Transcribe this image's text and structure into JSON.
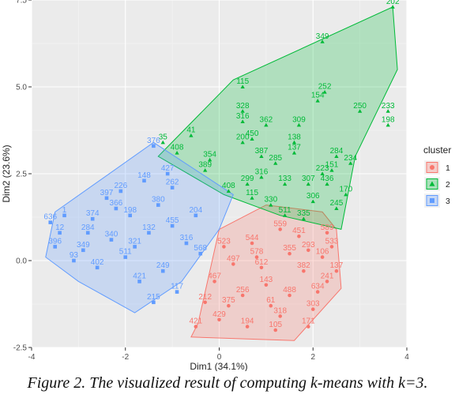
{
  "caption": "Figure 2. The visualized result of computing k-means with k=3.",
  "chart_data": {
    "type": "scatter",
    "title": "",
    "xlabel": "Dim1 (34.1%)",
    "ylabel": "Dim2 (23.6%)",
    "xlim": [
      -4,
      4
    ],
    "ylim": [
      -2.5,
      7.5
    ],
    "xticks": [
      -4,
      -2,
      0,
      2,
      4
    ],
    "yticks": [
      -2.5,
      0.0,
      2.5,
      5.0,
      7.5
    ],
    "xtick_labels": [
      "-4",
      "-2",
      "0",
      "2",
      "4"
    ],
    "ytick_labels": [
      "-2.5",
      "0.0",
      "2.5",
      "5.0",
      "7.5"
    ],
    "grid": true,
    "panel_background": "#EBEBEB",
    "legend": {
      "title": "cluster",
      "placement": "right",
      "entries": [
        "1",
        "2",
        "3"
      ]
    },
    "series": [
      {
        "name": "1",
        "color": "#F8766D",
        "marker": "circle",
        "hull": [
          [
            -0.45,
            -1.8
          ],
          [
            0.0,
            0.9
          ],
          [
            1.0,
            1.6
          ],
          [
            2.2,
            1.4
          ],
          [
            2.5,
            0.9
          ],
          [
            2.6,
            -0.8
          ],
          [
            1.6,
            -2.3
          ],
          [
            -0.6,
            -2.2
          ]
        ],
        "points": [
          [
            0.7,
            0.5,
            "544"
          ],
          [
            1.3,
            0.9,
            "559"
          ],
          [
            1.9,
            0.3,
            "293"
          ],
          [
            2.2,
            0.1,
            "106"
          ],
          [
            2.5,
            -0.3,
            "137"
          ],
          [
            2.3,
            -0.6,
            "241"
          ],
          [
            0.6,
            -1.9,
            "194"
          ],
          [
            1.2,
            -2.0,
            "105"
          ],
          [
            -0.5,
            -1.9,
            "421"
          ],
          [
            0.2,
            -1.3,
            "375"
          ],
          [
            1.5,
            -1.0,
            "488"
          ],
          [
            0.9,
            -0.2,
            "612"
          ],
          [
            2.0,
            -1.4,
            "303"
          ],
          [
            1.7,
            0.7,
            "451"
          ],
          [
            0.1,
            0.4,
            "523"
          ],
          [
            1.3,
            -1.6,
            "318"
          ],
          [
            2.3,
            0.8,
            "589"
          ],
          [
            -0.1,
            -0.6,
            "467"
          ],
          [
            0.5,
            -1.0,
            "256"
          ],
          [
            1.8,
            -0.3,
            "382"
          ],
          [
            1.0,
            -0.7,
            "143"
          ],
          [
            0.3,
            -0.1,
            "497"
          ],
          [
            2.1,
            -0.9,
            "634"
          ],
          [
            -0.3,
            -1.2,
            "212"
          ],
          [
            1.5,
            0.2,
            "355"
          ],
          [
            0.8,
            0.1,
            "578"
          ],
          [
            0.0,
            -1.7,
            "429"
          ],
          [
            1.1,
            -1.3,
            "61"
          ],
          [
            2.4,
            0.4,
            "533"
          ],
          [
            1.9,
            -1.9,
            "171"
          ]
        ]
      },
      {
        "name": "2",
        "color": "#00BA38",
        "marker": "triangle",
        "hull": [
          [
            -1.3,
            3.0
          ],
          [
            0.3,
            5.2
          ],
          [
            3.7,
            7.3
          ],
          [
            3.8,
            5.5
          ],
          [
            2.9,
            3.0
          ],
          [
            2.6,
            0.9
          ],
          [
            1.3,
            1.3
          ],
          [
            0.1,
            1.9
          ]
        ],
        "points": [
          [
            3.7,
            7.3,
            "202"
          ],
          [
            2.2,
            6.3,
            "349"
          ],
          [
            0.5,
            5.0,
            "115"
          ],
          [
            2.25,
            4.85,
            "252"
          ],
          [
            2.1,
            4.6,
            "154"
          ],
          [
            3.0,
            4.3,
            "250"
          ],
          [
            3.6,
            4.3,
            "233"
          ],
          [
            3.6,
            3.9,
            "198"
          ],
          [
            1.0,
            3.9,
            "362"
          ],
          [
            1.7,
            3.9,
            "309"
          ],
          [
            0.5,
            4.0,
            "316"
          ],
          [
            0.5,
            4.3,
            "328"
          ],
          [
            -1.2,
            3.4,
            "35"
          ],
          [
            -0.6,
            3.6,
            "41"
          ],
          [
            -0.9,
            3.1,
            "408"
          ],
          [
            0.5,
            3.4,
            "200"
          ],
          [
            0.7,
            3.5,
            "450"
          ],
          [
            1.6,
            3.4,
            "138"
          ],
          [
            1.6,
            3.1,
            "137"
          ],
          [
            2.5,
            3.0,
            "284"
          ],
          [
            2.8,
            2.8,
            "234"
          ],
          [
            2.4,
            2.6,
            "151"
          ],
          [
            1.2,
            2.8,
            "285"
          ],
          [
            1.9,
            2.2,
            "307"
          ],
          [
            0.9,
            2.4,
            "316"
          ],
          [
            1.4,
            2.2,
            "133"
          ],
          [
            2.3,
            2.2,
            "436"
          ],
          [
            2.0,
            1.7,
            "306"
          ],
          [
            2.5,
            1.5,
            "245"
          ],
          [
            1.8,
            1.2,
            "335"
          ],
          [
            0.7,
            1.8,
            "115"
          ],
          [
            -0.3,
            2.6,
            "389"
          ],
          [
            -0.2,
            2.9,
            "354"
          ],
          [
            0.6,
            2.2,
            "299"
          ],
          [
            1.1,
            1.6,
            "330"
          ],
          [
            2.2,
            2.5,
            "223"
          ],
          [
            1.4,
            1.3,
            "511"
          ],
          [
            0.2,
            2.0,
            "408"
          ],
          [
            2.7,
            1.9,
            "170"
          ],
          [
            0.9,
            3.0,
            "387"
          ]
        ]
      },
      {
        "name": "3",
        "color": "#619CFF",
        "marker": "square",
        "hull": [
          [
            -3.7,
            0.1
          ],
          [
            -3.5,
            1.4
          ],
          [
            -1.4,
            3.4
          ],
          [
            0.3,
            1.9
          ],
          [
            0.0,
            0.9
          ],
          [
            -0.8,
            -0.6
          ],
          [
            -1.8,
            -1.5
          ],
          [
            -3.0,
            -0.6
          ]
        ],
        "points": [
          [
            -3.6,
            1.1,
            "636"
          ],
          [
            -3.5,
            0.4,
            "396"
          ],
          [
            -3.3,
            1.3,
            "1"
          ],
          [
            -3.4,
            0.8,
            "12"
          ],
          [
            -2.9,
            0.3,
            "349"
          ],
          [
            -2.7,
            1.2,
            "374"
          ],
          [
            -2.4,
            1.8,
            "397"
          ],
          [
            -2.1,
            2.0,
            "226"
          ],
          [
            -1.4,
            3.3,
            "376"
          ],
          [
            -1.1,
            2.5,
            "427"
          ],
          [
            -1.0,
            2.1,
            "262"
          ],
          [
            -1.3,
            1.6,
            "380"
          ],
          [
            -1.9,
            1.3,
            "198"
          ],
          [
            -2.3,
            0.6,
            "340"
          ],
          [
            -2.0,
            0.1,
            "511"
          ],
          [
            -1.7,
            -0.6,
            "421"
          ],
          [
            -1.2,
            -0.3,
            "249"
          ],
          [
            -1.5,
            0.8,
            "132"
          ],
          [
            -2.6,
            -0.2,
            "402"
          ],
          [
            -0.7,
            0.5,
            "316"
          ],
          [
            -0.5,
            1.3,
            "204"
          ],
          [
            -2.2,
            1.5,
            "366"
          ],
          [
            -1.6,
            2.3,
            "148"
          ],
          [
            -2.8,
            0.8,
            "284"
          ],
          [
            -0.9,
            -0.9,
            "117"
          ],
          [
            -1.0,
            1.0,
            "455"
          ],
          [
            -3.1,
            0.0,
            "93"
          ],
          [
            -1.8,
            0.4,
            "321"
          ],
          [
            -0.4,
            0.2,
            "568"
          ],
          [
            -1.4,
            -1.2,
            "215"
          ]
        ]
      }
    ]
  }
}
